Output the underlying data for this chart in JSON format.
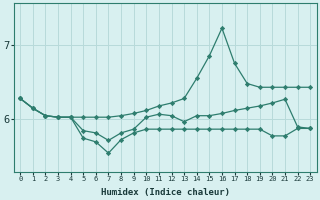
{
  "xlabel": "Humidex (Indice chaleur)",
  "x": [
    0,
    1,
    2,
    3,
    4,
    5,
    6,
    7,
    8,
    9,
    10,
    11,
    12,
    13,
    14,
    15,
    16,
    17,
    18,
    19,
    20,
    21,
    22,
    23
  ],
  "line1": [
    6.28,
    6.15,
    6.05,
    6.03,
    6.03,
    6.03,
    6.03,
    6.03,
    6.05,
    6.08,
    6.12,
    6.18,
    6.22,
    6.28,
    6.55,
    6.85,
    7.22,
    6.75,
    6.48,
    6.43,
    6.43,
    6.43,
    6.43,
    6.43
  ],
  "line2": [
    6.28,
    6.15,
    6.05,
    6.03,
    6.03,
    5.85,
    5.82,
    5.72,
    5.82,
    5.87,
    6.03,
    6.07,
    6.05,
    5.97,
    6.05,
    6.05,
    6.08,
    6.12,
    6.15,
    6.18,
    6.22,
    6.27,
    5.9,
    5.88
  ],
  "line3": [
    6.28,
    6.15,
    6.05,
    6.03,
    6.03,
    5.75,
    5.7,
    5.55,
    5.73,
    5.82,
    5.87,
    5.87,
    5.87,
    5.87,
    5.87,
    5.87,
    5.87,
    5.87,
    5.87,
    5.87,
    5.78,
    5.78,
    5.88,
    5.88
  ],
  "line_color": "#2e7d6e",
  "bg_color": "#d8f0f0",
  "grid_color": "#b8dada",
  "yticks": [
    6,
    7
  ],
  "ylim": [
    5.3,
    7.55
  ],
  "xlim": [
    -0.5,
    23.5
  ]
}
